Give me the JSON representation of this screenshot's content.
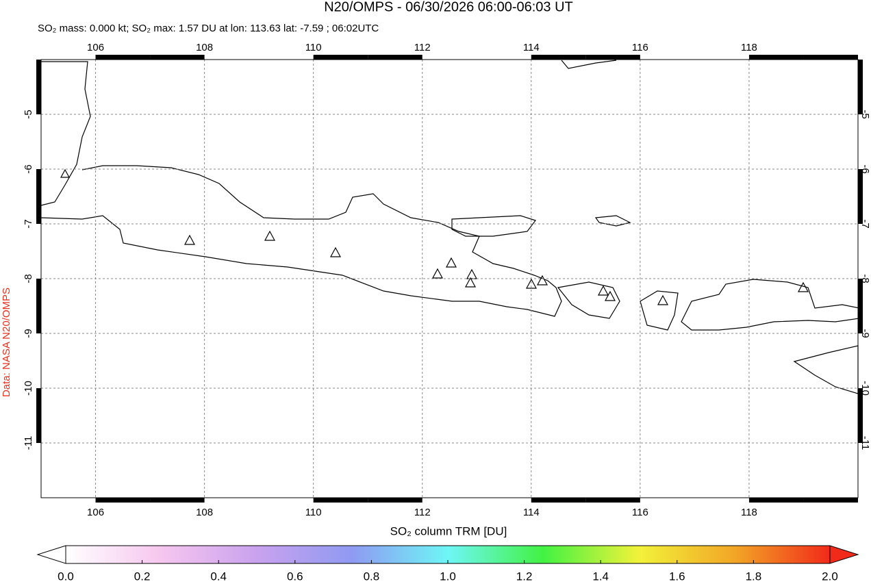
{
  "chart_data": {
    "type": "map",
    "title": "N20/OMPS - 06/30/2026 06:00-06:03 UT",
    "subtitle": "SO₂ mass: 0.000 kt; SO₂ max: 1.57 DU at lon: 113.63 lat: -7.59 ; 06:02UTC",
    "credit": "Data: NASA N20/OMPS",
    "xlim": [
      105,
      120
    ],
    "ylim": [
      -12,
      -4
    ],
    "xticks": [
      106,
      108,
      110,
      112,
      114,
      116,
      118
    ],
    "yticks": [
      -5,
      -6,
      -7,
      -8,
      -9,
      -10,
      -11
    ],
    "grid": true,
    "colorbar": {
      "label": "SO₂ column TRM [DU]",
      "clim": [
        0,
        2
      ],
      "ticks": [
        {
          "value": 0,
          "label": "0.0"
        },
        {
          "value": 0.2,
          "label": "0.2"
        },
        {
          "value": 0.4,
          "label": "0.4"
        },
        {
          "value": 0.6,
          "label": "0.6"
        },
        {
          "value": 0.8,
          "label": "0.8"
        },
        {
          "value": 1,
          "label": "1.0"
        },
        {
          "value": 1.2,
          "label": "1.2"
        },
        {
          "value": 1.4,
          "label": "1.4"
        },
        {
          "value": 1.6,
          "label": "1.6"
        },
        {
          "value": 1.8,
          "label": "1.8"
        },
        {
          "value": 2,
          "label": "2.0"
        }
      ],
      "colors": [
        "#ffffff",
        "#f6c6ef",
        "#c9a2ee",
        "#8f9af2",
        "#6ef6f6",
        "#42f242",
        "#f2f23a",
        "#f2a626",
        "#f22a1a"
      ]
    }
  }
}
